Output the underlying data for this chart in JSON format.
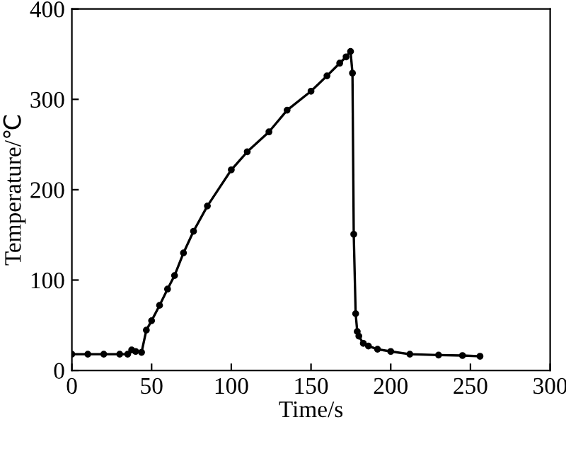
{
  "chart_data": {
    "type": "line",
    "xlabel": "Time/s",
    "ylabel": "Temperature/℃",
    "x": [
      0,
      10,
      20,
      30,
      35,
      37.5,
      40,
      43.7,
      46.7,
      50,
      55,
      60,
      64.4,
      70,
      76.3,
      85,
      100,
      110,
      123.6,
      135,
      150,
      160,
      168,
      172,
      174.8,
      176,
      176.8,
      178,
      179,
      180,
      182.8,
      186,
      191.7,
      200,
      212,
      230,
      245,
      256
    ],
    "series": [
      {
        "color": "#000000",
        "values": [
          18,
          18,
          18,
          18,
          18,
          22.6,
          21,
          20,
          44.6,
          55,
          72,
          90,
          105,
          130,
          154,
          182,
          222,
          242,
          264,
          288,
          309,
          326,
          340,
          347,
          353,
          329,
          150.7,
          62.8,
          43,
          38,
          30,
          27,
          23.5,
          21,
          18,
          17,
          16.5,
          15.7
        ]
      }
    ],
    "xlim": [
      0,
      300
    ],
    "ylim": [
      0,
      400
    ],
    "xticks": [
      0,
      50,
      100,
      150,
      200,
      250,
      300
    ],
    "yticks": [
      0,
      100,
      200,
      300,
      400
    ],
    "marker": "circle",
    "line_style": "solid",
    "grid": false,
    "legend": false
  }
}
